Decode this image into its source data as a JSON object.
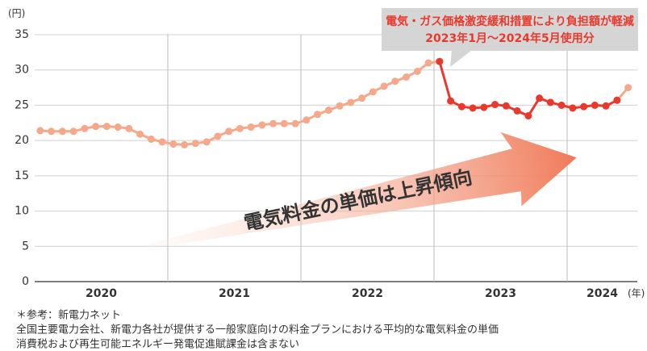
{
  "chart_data": {
    "type": "line",
    "y_unit": "(円)",
    "x_unit": "(年)",
    "years": [
      "2020",
      "2021",
      "2022",
      "2023",
      "2024"
    ],
    "series": [
      {
        "color": "#f5a98a",
        "values": [
          21.4,
          21.3,
          21.3,
          21.3,
          21.7,
          22.0,
          22.0,
          21.9,
          21.7,
          20.9,
          20.2,
          19.8,
          19.5,
          19.4,
          19.6,
          19.8,
          20.6,
          21.3,
          21.7,
          21.9,
          22.2,
          22.4,
          22.4,
          22.4,
          22.9,
          23.7,
          24.3,
          24.9,
          25.4,
          26.0,
          26.9,
          27.7,
          28.4,
          29.0,
          29.8,
          31.0,
          31.2,
          null,
          null,
          null,
          null,
          null,
          null,
          null,
          null,
          null,
          null,
          null,
          null,
          null,
          null,
          null,
          25.7,
          27.5
        ]
      },
      {
        "color": "#e8392c",
        "values": [
          null,
          null,
          null,
          null,
          null,
          null,
          null,
          null,
          null,
          null,
          null,
          null,
          null,
          null,
          null,
          null,
          null,
          null,
          null,
          null,
          null,
          null,
          null,
          null,
          null,
          null,
          null,
          null,
          null,
          null,
          null,
          null,
          null,
          null,
          null,
          null,
          31.2,
          25.6,
          24.8,
          24.6,
          24.7,
          25.1,
          24.9,
          24.2,
          23.5,
          26.0,
          25.4,
          25.0,
          24.6,
          24.8,
          25.0,
          24.9,
          25.7,
          null
        ]
      }
    ],
    "ylim": [
      0,
      35
    ],
    "yticks": [
      0,
      5,
      10,
      15,
      20,
      25,
      30,
      35
    ],
    "grid": true,
    "annotation": [
      "電気・ガス価格激変緩和措置により負担額が軽減",
      "2023年1月～2024年5月使用分"
    ],
    "trend_label": "電気料金の単価は上昇傾向",
    "notes": [
      "＊参考：新電力ネット",
      "全国主要電力会社、新電力各社が提供する一般家庭向けの料金プランにおける平均的な電気料金の単価",
      "消費税および再生可能エネルギー発電促進賦課金は含まない"
    ]
  }
}
